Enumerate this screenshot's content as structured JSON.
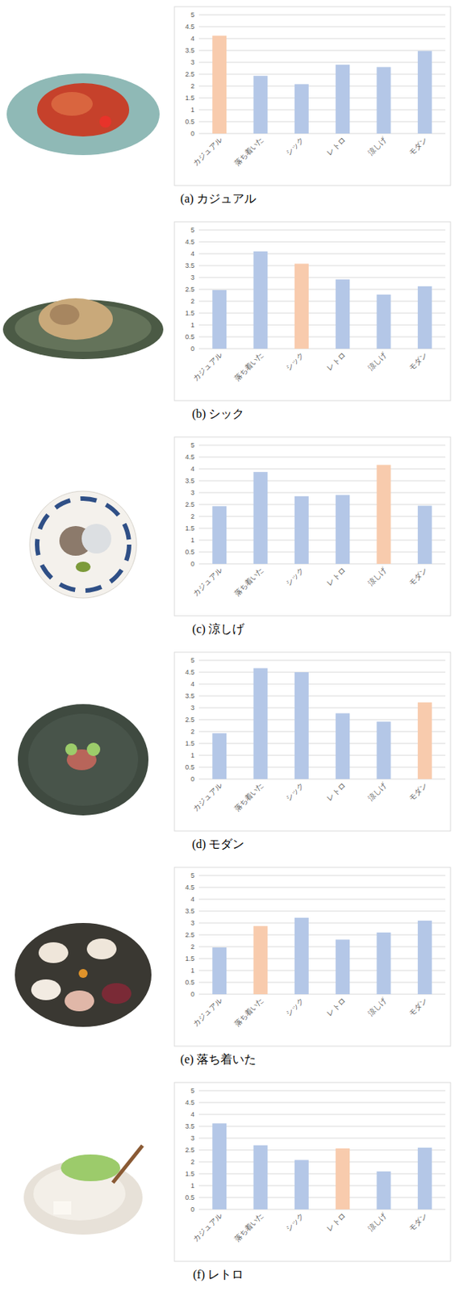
{
  "chart_data": [
    {
      "type": "bar",
      "title": "(a) カジュアル",
      "categories": [
        "カジュアル",
        "落ち着いた",
        "シック",
        "レトロ",
        "涼しげ",
        "モダン"
      ],
      "values": [
        4.12,
        2.43,
        2.08,
        2.9,
        2.8,
        3.48
      ],
      "colors": [
        "#f8cbad",
        "#b4c7e7",
        "#b4c7e7",
        "#b4c7e7",
        "#b4c7e7",
        "#b4c7e7"
      ],
      "ylim": [
        0,
        5
      ],
      "yticks": [
        0,
        0.5,
        1,
        1.5,
        2,
        2.5,
        3,
        3.5,
        4,
        4.5,
        5
      ],
      "grid": true
    },
    {
      "type": "bar",
      "title": "(b) シック",
      "categories": [
        "カジュアル",
        "落ち着いた",
        "シック",
        "レトロ",
        "涼しげ",
        "モダン"
      ],
      "values": [
        2.47,
        4.1,
        3.58,
        2.92,
        2.28,
        2.63
      ],
      "colors": [
        "#b4c7e7",
        "#b4c7e7",
        "#f8cbad",
        "#b4c7e7",
        "#b4c7e7",
        "#b4c7e7"
      ],
      "ylim": [
        0,
        5
      ],
      "yticks": [
        0,
        0.5,
        1,
        1.5,
        2,
        2.5,
        3,
        3.5,
        4,
        4.5,
        5
      ],
      "grid": true
    },
    {
      "type": "bar",
      "title": "(c) 涼しげ",
      "categories": [
        "カジュアル",
        "落ち着いた",
        "シック",
        "レトロ",
        "涼しげ",
        "モダン"
      ],
      "values": [
        2.43,
        3.87,
        2.85,
        2.9,
        4.17,
        2.45
      ],
      "colors": [
        "#b4c7e7",
        "#b4c7e7",
        "#b4c7e7",
        "#b4c7e7",
        "#f8cbad",
        "#b4c7e7"
      ],
      "ylim": [
        0,
        5
      ],
      "yticks": [
        0,
        0.5,
        1,
        1.5,
        2,
        2.5,
        3,
        3.5,
        4,
        4.5,
        5
      ],
      "grid": true
    },
    {
      "type": "bar",
      "title": "(d) モダン",
      "categories": [
        "カジュアル",
        "落ち着いた",
        "シック",
        "レトロ",
        "涼しげ",
        "モダン"
      ],
      "values": [
        1.93,
        4.67,
        4.5,
        2.77,
        2.42,
        3.23
      ],
      "colors": [
        "#b4c7e7",
        "#b4c7e7",
        "#b4c7e7",
        "#b4c7e7",
        "#b4c7e7",
        "#f8cbad"
      ],
      "ylim": [
        0,
        5
      ],
      "yticks": [
        0,
        0.5,
        1,
        1.5,
        2,
        2.5,
        3,
        3.5,
        4,
        4.5,
        5
      ],
      "grid": true
    },
    {
      "type": "bar",
      "title": "(e) 落ち着いた",
      "categories": [
        "カジュアル",
        "落ち着いた",
        "シック",
        "レトロ",
        "涼しげ",
        "モダン"
      ],
      "values": [
        1.97,
        2.87,
        3.22,
        2.3,
        2.6,
        3.1
      ],
      "colors": [
        "#b4c7e7",
        "#f8cbad",
        "#b4c7e7",
        "#b4c7e7",
        "#b4c7e7",
        "#b4c7e7"
      ],
      "ylim": [
        0,
        5
      ],
      "yticks": [
        0,
        0.5,
        1,
        1.5,
        2,
        2.5,
        3,
        3.5,
        4,
        4.5,
        5
      ],
      "grid": true
    },
    {
      "type": "bar",
      "title": "(f) レトロ",
      "categories": [
        "カジュアル",
        "落ち着いた",
        "シック",
        "レトロ",
        "涼しげ",
        "モダン"
      ],
      "values": [
        3.62,
        2.7,
        2.08,
        2.57,
        1.6,
        2.6
      ],
      "colors": [
        "#b4c7e7",
        "#b4c7e7",
        "#b4c7e7",
        "#f8cbad",
        "#b4c7e7",
        "#b4c7e7"
      ],
      "ylim": [
        0,
        5
      ],
      "yticks": [
        0,
        0.5,
        1,
        1.5,
        2,
        2.5,
        3,
        3.5,
        4,
        4.5,
        5
      ],
      "grid": true
    }
  ]
}
